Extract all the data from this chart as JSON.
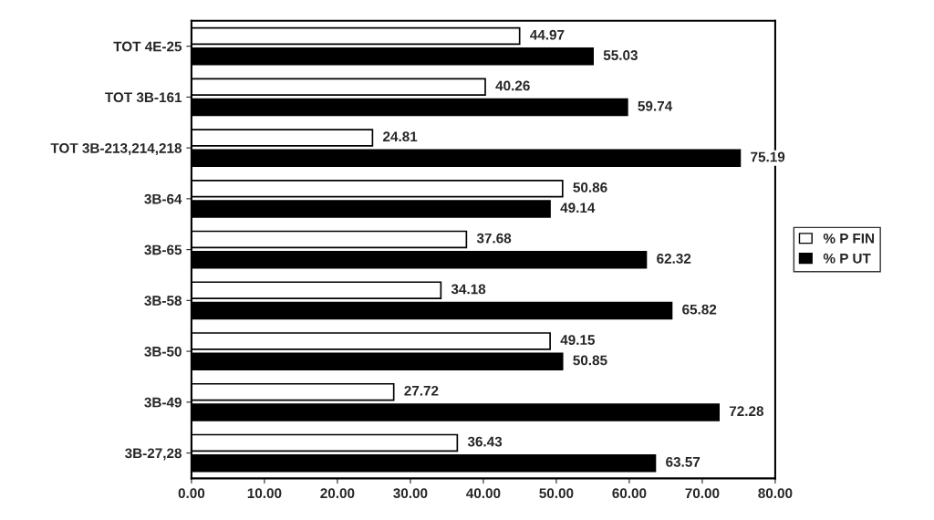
{
  "chart_data": {
    "type": "bar",
    "orientation": "horizontal",
    "categories": [
      "TOT 4E-25",
      "TOT 3B-161",
      "TOT 3B-213,214,218",
      "3B-64",
      "3B-65",
      "3B-58",
      "3B-50",
      "3B-49",
      "3B-27,28"
    ],
    "series": [
      {
        "name": "% P FIN",
        "color": "#ffffff",
        "values": [
          44.97,
          40.26,
          24.81,
          50.86,
          37.68,
          34.18,
          49.15,
          27.72,
          36.43
        ]
      },
      {
        "name": "% P UT",
        "color": "#000000",
        "values": [
          55.03,
          59.74,
          75.19,
          49.14,
          62.32,
          65.82,
          50.85,
          72.28,
          63.57
        ]
      }
    ],
    "xlim": [
      0,
      80
    ],
    "xticks": [
      {
        "value": 0,
        "label": "0.00"
      },
      {
        "value": 10,
        "label": "10.00"
      },
      {
        "value": 20,
        "label": "20.00"
      },
      {
        "value": 30,
        "label": "30.00"
      },
      {
        "value": 40,
        "label": "40.00"
      },
      {
        "value": 50,
        "label": "50.00"
      },
      {
        "value": 60,
        "label": "60.00"
      },
      {
        "value": 70,
        "label": "70.00"
      },
      {
        "value": 80,
        "label": "80.00"
      }
    ],
    "data_labels": true,
    "legend": "right",
    "grid": false
  }
}
